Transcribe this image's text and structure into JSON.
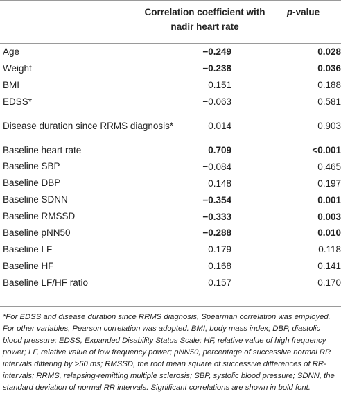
{
  "header": {
    "coef_line1": "Correlation coefficient with",
    "coef_line2": "nadir heart rate",
    "pvalue_p": "p",
    "pvalue_rest": "-value"
  },
  "rows": [
    {
      "label": "Age",
      "coef": "−0.249",
      "p": "0.028",
      "coef_bold": true,
      "p_bold": true
    },
    {
      "label": "Weight",
      "coef": "−0.238",
      "p": "0.036",
      "coef_bold": true,
      "p_bold": true
    },
    {
      "label": "BMI",
      "coef": "−0.151",
      "p": "0.188",
      "coef_bold": false,
      "p_bold": false
    },
    {
      "label": "EDSS*",
      "coef": "−0.063",
      "p": "0.581",
      "coef_bold": false,
      "p_bold": false
    },
    {
      "label": "Disease duration since RRMS diagnosis*",
      "coef": "0.014",
      "p": "0.903",
      "coef_bold": false,
      "p_bold": false
    },
    {
      "label": "Baseline heart rate",
      "coef": "0.709",
      "p": "<0.001",
      "coef_bold": true,
      "p_bold": true
    },
    {
      "label": "Baseline SBP",
      "coef": "−0.084",
      "p": "0.465",
      "coef_bold": false,
      "p_bold": false
    },
    {
      "label": "Baseline DBP",
      "coef": "0.148",
      "p": "0.197",
      "coef_bold": false,
      "p_bold": false
    },
    {
      "label": "Baseline SDNN",
      "coef": "−0.354",
      "p": "0.001",
      "coef_bold": true,
      "p_bold": true
    },
    {
      "label": "Baseline RMSSD",
      "coef": "−0.333",
      "p": "0.003",
      "coef_bold": true,
      "p_bold": true
    },
    {
      "label": "Baseline pNN50",
      "coef": "−0.288",
      "p": "0.010",
      "coef_bold": true,
      "p_bold": true
    },
    {
      "label": "Baseline LF",
      "coef": "0.179",
      "p": "0.118",
      "coef_bold": false,
      "p_bold": false
    },
    {
      "label": "Baseline HF",
      "coef": "−0.168",
      "p": "0.141",
      "coef_bold": false,
      "p_bold": false
    },
    {
      "label": "Baseline LF/HF ratio",
      "coef": "0.157",
      "p": "0.170",
      "coef_bold": false,
      "p_bold": false
    }
  ],
  "footnote": "*For EDSS and disease duration since RRMS diagnosis, Spearman correlation was employed. For other variables, Pearson correlation was adopted. BMI, body mass index; DBP, diastolic blood pressure; EDSS, Expanded Disability Status Scale; HF, relative value of high frequency power; LF, relative value of low frequency power; pNN50, percentage of successive normal RR intervals differing by >50 ms; RMSSD, the root mean square of successive differences of RR-intervals; RRMS, relapsing-remitting multiple sclerosis; SBP, systolic blood pressure; SDNN, the standard deviation of normal RR intervals. Significant correlations are shown in bold font."
}
